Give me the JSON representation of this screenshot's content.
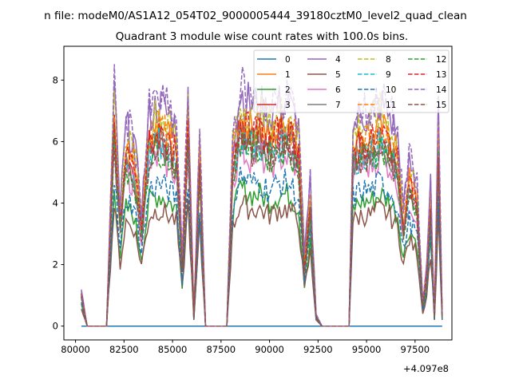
{
  "chart_data": {
    "type": "line",
    "suptitle": "n file: modeM0/AS1A12_054T02_9000005444_39180cztM0_level2_quad_clean",
    "title": "Quadrant 3 module wise count rates with 100.0s bins.",
    "xlabel": "",
    "ylabel": "",
    "x_offset_label": "+4.097e8",
    "xlim": [
      79400,
      99400
    ],
    "ylim": [
      -0.45,
      9.1
    ],
    "xticks": [
      80000,
      82500,
      85000,
      87500,
      90000,
      92500,
      95000,
      97500
    ],
    "xtick_labels": [
      "80000",
      "82500",
      "85000",
      "87500",
      "90000",
      "92500",
      "95000",
      "97500"
    ],
    "yticks": [
      0,
      2,
      4,
      6,
      8
    ],
    "ytick_labels": [
      "0",
      "2",
      "4",
      "6",
      "8"
    ],
    "legend_position": "top-right",
    "x": [
      80300,
      80600,
      81600,
      81800,
      82000,
      82300,
      82600,
      83000,
      83400,
      83800,
      84300,
      84800,
      85200,
      85500,
      85800,
      86100,
      86400,
      86700,
      87800,
      88100,
      88500,
      89000,
      89500,
      90000,
      90500,
      91000,
      91500,
      91800,
      92100,
      92400,
      92700,
      94100,
      94300,
      94700,
      95200,
      95700,
      96200,
      96600,
      96900,
      97200,
      97600,
      97900,
      98100,
      98300,
      98500,
      98700,
      98900
    ],
    "profile": [
      0.15,
      0,
      0,
      0.5,
      1.0,
      0.5,
      0.85,
      0.8,
      0.5,
      0.9,
      0.95,
      0.9,
      0.85,
      0.3,
      1.0,
      0.05,
      0.8,
      0,
      0,
      0.8,
      1.0,
      0.95,
      0.95,
      0.9,
      0.95,
      0.95,
      0.85,
      0.3,
      0.6,
      0.05,
      0,
      0,
      0.85,
      0.9,
      0.9,
      0.95,
      0.9,
      0.8,
      0.5,
      0.7,
      0.6,
      0.1,
      0.25,
      0.6,
      0.05,
      0.9,
      0.05
    ],
    "series": [
      {
        "name": "0",
        "level": 0,
        "color": "#1f77b4",
        "dashed": false
      },
      {
        "name": "1",
        "level": 6.8,
        "color": "#ff7f0e",
        "dashed": false
      },
      {
        "name": "2",
        "level": 4.5,
        "color": "#2ca02c",
        "dashed": false
      },
      {
        "name": "3",
        "level": 6.5,
        "color": "#d62728",
        "dashed": false
      },
      {
        "name": "4",
        "level": 7.6,
        "color": "#9467bd",
        "dashed": false
      },
      {
        "name": "5",
        "level": 4.0,
        "color": "#8c564b",
        "dashed": false
      },
      {
        "name": "6",
        "level": 5.8,
        "color": "#e377c2",
        "dashed": false
      },
      {
        "name": "7",
        "level": 6.3,
        "color": "#7f7f7f",
        "dashed": false
      },
      {
        "name": "8",
        "level": 7.3,
        "color": "#bcbd22",
        "dashed": true
      },
      {
        "name": "9",
        "level": 6.2,
        "color": "#17becf",
        "dashed": true
      },
      {
        "name": "10",
        "level": 4.9,
        "color": "#1f77b4",
        "dashed": true
      },
      {
        "name": "11",
        "level": 6.9,
        "color": "#ff7f0e",
        "dashed": true
      },
      {
        "name": "12",
        "level": 6.1,
        "color": "#2ca02c",
        "dashed": true
      },
      {
        "name": "13",
        "level": 6.6,
        "color": "#d62728",
        "dashed": true
      },
      {
        "name": "14",
        "level": 7.8,
        "color": "#9467bd",
        "dashed": true
      },
      {
        "name": "15",
        "level": 6.0,
        "color": "#8c564b",
        "dashed": true
      }
    ]
  }
}
